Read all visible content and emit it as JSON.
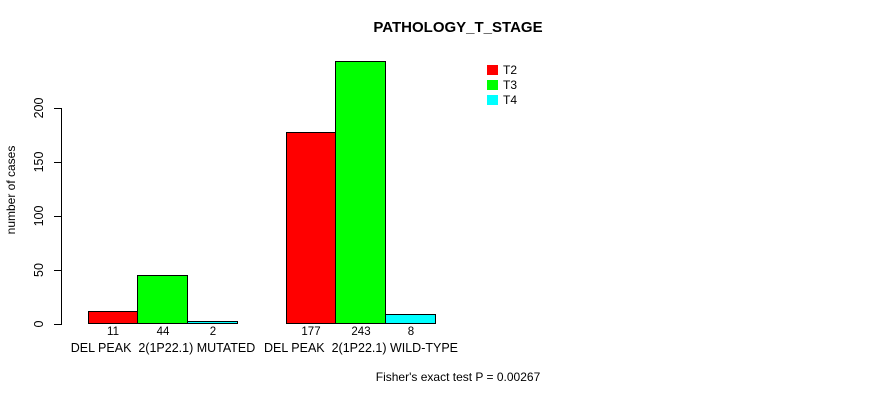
{
  "chart_data": {
    "type": "bar",
    "title": "PATHOLOGY_T_STAGE",
    "ylabel": "number of cases",
    "xlabel": "",
    "yticks": [
      0,
      50,
      100,
      150,
      200
    ],
    "ylim": [
      0,
      250
    ],
    "grid": false,
    "legend_position": "top-right",
    "categories": [
      "DEL PEAK  2(1P22.1) MUTATED",
      "DEL PEAK  2(1P22.1) WILD-TYPE"
    ],
    "series": [
      {
        "name": "T2",
        "color": "#ff0000",
        "values": [
          11,
          177
        ]
      },
      {
        "name": "T3",
        "color": "#00ff00",
        "values": [
          44,
          243
        ]
      },
      {
        "name": "T4",
        "color": "#00ffff",
        "values": [
          2,
          8
        ]
      }
    ],
    "bar_labels": [
      [
        11,
        44,
        2
      ],
      [
        177,
        243,
        8
      ]
    ],
    "annotation": "Fisher's exact test P = 0.00267"
  }
}
